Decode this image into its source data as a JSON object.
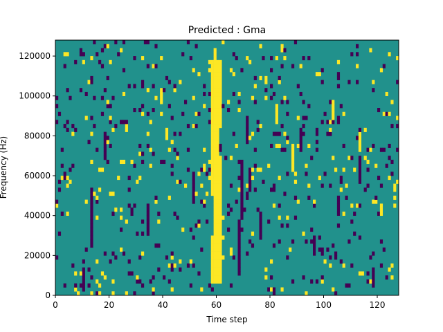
{
  "chart_data": {
    "type": "heatmap",
    "title": "Predicted : Gma",
    "xlabel": "Time step",
    "ylabel": "Frequency (Hz)",
    "xlim": [
      0,
      128
    ],
    "ylim": [
      0,
      128000
    ],
    "x_ticks": [
      "0",
      "20",
      "40",
      "60",
      "80",
      "100",
      "120"
    ],
    "y_ticks": [
      "0",
      "20000",
      "40000",
      "60000",
      "80000",
      "100000",
      "120000"
    ],
    "x_tick_values": [
      0,
      20,
      40,
      60,
      80,
      100,
      120
    ],
    "y_tick_values": [
      0,
      20000,
      40000,
      60000,
      80000,
      100000,
      120000
    ],
    "rows": 64,
    "cols": 128,
    "colormap": {
      "low": "#440154",
      "mid": "#21918c",
      "high": "#fde725"
    },
    "background_level": "mid",
    "ridge": {
      "level": "high",
      "bins": [
        {
          "y": [
            3,
            15
          ],
          "x": [
            58,
            62
          ]
        },
        {
          "y": [
            15,
            25
          ],
          "x": [
            59,
            62
          ]
        },
        {
          "y": [
            25,
            35
          ],
          "x": [
            58,
            62
          ]
        },
        {
          "y": [
            35,
            42
          ],
          "x": [
            58,
            61
          ]
        },
        {
          "y": [
            42,
            48
          ],
          "x": [
            58,
            62
          ]
        },
        {
          "y": [
            48,
            54
          ],
          "x": [
            58,
            62
          ]
        },
        {
          "y": [
            54,
            59
          ],
          "x": [
            58,
            62
          ]
        },
        {
          "y": [
            59,
            62
          ],
          "x": [
            59,
            60
          ]
        }
      ]
    },
    "low_segments": [
      {
        "x": 10,
        "y0": 1,
        "y1": 6
      },
      {
        "x": 13,
        "y0": 12,
        "y1": 26
      },
      {
        "x": 18,
        "y0": 34,
        "y1": 40
      },
      {
        "x": 34,
        "y0": 16,
        "y1": 22
      },
      {
        "x": 51,
        "y0": 24,
        "y1": 30
      },
      {
        "x": 68,
        "y0": 5,
        "y1": 18
      },
      {
        "x": 69,
        "y0": 19,
        "y1": 33
      },
      {
        "x": 71,
        "y0": 38,
        "y1": 44
      },
      {
        "x": 72,
        "y0": 26,
        "y1": 31
      },
      {
        "x": 76,
        "y0": 14,
        "y1": 20
      },
      {
        "x": 91,
        "y0": 36,
        "y1": 41
      },
      {
        "x": 96,
        "y0": 10,
        "y1": 14
      },
      {
        "x": 105,
        "y0": 20,
        "y1": 24
      },
      {
        "x": 113,
        "y0": 29,
        "y1": 34
      },
      {
        "x": 118,
        "y0": 2,
        "y1": 6
      }
    ],
    "high_segments": [
      {
        "x": 39,
        "y0": 48,
        "y1": 51
      },
      {
        "x": 82,
        "y0": 43,
        "y1": 47
      },
      {
        "x": 88,
        "y0": 31,
        "y1": 37
      },
      {
        "x": 103,
        "y0": 44,
        "y1": 48
      },
      {
        "x": 113,
        "y0": 36,
        "y1": 40
      },
      {
        "x": 121,
        "y0": 20,
        "y1": 22
      }
    ],
    "speckle": {
      "low_density": 0.045,
      "high_density": 0.03,
      "seed": 7
    }
  }
}
